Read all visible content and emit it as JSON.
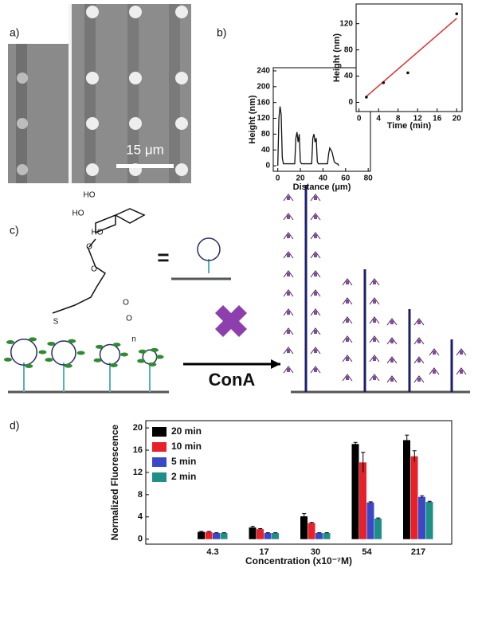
{
  "panel_labels": [
    "a)",
    "b)",
    "c)",
    "d)"
  ],
  "scale_bar": "15 μm",
  "diagram": {
    "reagent": "ConA",
    "equals": "=",
    "structure_labels": [
      "HO",
      "HO",
      "HO",
      "O",
      "O",
      "O",
      "O",
      "S",
      "n"
    ]
  },
  "chart_data": [
    {
      "type": "line",
      "xlabel": "Distance (μm)",
      "ylabel": "Height (nm)",
      "x": [
        0,
        1,
        2,
        3,
        4,
        5,
        8,
        12,
        15,
        16,
        17,
        18,
        19,
        20,
        21,
        22,
        25,
        28,
        30,
        31,
        32,
        33,
        34,
        35,
        36,
        38,
        42,
        44,
        45,
        46,
        47,
        48,
        50,
        52,
        53,
        54
      ],
      "series": [
        {
          "color": "#111111",
          "values": [
            0,
            120,
            150,
            130,
            20,
            5,
            5,
            5,
            5,
            70,
            85,
            60,
            80,
            10,
            5,
            5,
            5,
            5,
            5,
            70,
            80,
            60,
            70,
            10,
            5,
            5,
            5,
            5,
            30,
            45,
            40,
            35,
            10,
            5,
            5,
            0
          ]
        }
      ],
      "xlim": [
        -4,
        82
      ],
      "xticks": [
        0,
        20,
        40,
        60,
        80
      ],
      "ylim": [
        -14,
        248
      ],
      "yticks": [
        0,
        40,
        80,
        120,
        160,
        200,
        240
      ]
    },
    {
      "type": "scatter",
      "xlabel": "Time (min)",
      "ylabel": "Height (nm)",
      "x": [
        1.5,
        5,
        10,
        20
      ],
      "series": [
        {
          "color": "#111111",
          "values": [
            8,
            30,
            45,
            135
          ]
        }
      ],
      "fit": {
        "x": [
          1.5,
          20
        ],
        "y": [
          9,
          128
        ],
        "color": "#e03030"
      },
      "xlim": [
        -0.6,
        21.1
      ],
      "xticks": [
        0,
        4,
        8,
        12,
        16,
        20
      ],
      "ylim": [
        -14,
        150
      ],
      "yticks": [
        0,
        40,
        80,
        120
      ]
    },
    {
      "type": "bar",
      "xlabel": "Concentration (x10⁻⁷M)",
      "ylabel": "Normalized Fluorescence",
      "categories": [
        "4.3",
        "17",
        "30",
        "54",
        "217"
      ],
      "series": [
        {
          "name": "20 min",
          "color": "#000000",
          "values": [
            1.3,
            2.1,
            4.1,
            17.1,
            17.8
          ],
          "errors": [
            0.1,
            0.2,
            0.5,
            0.3,
            0.9
          ]
        },
        {
          "name": "10 min",
          "color": "#e8202a",
          "values": [
            1.3,
            1.8,
            2.9,
            13.8,
            14.9
          ],
          "errors": [
            0.1,
            0.1,
            0.1,
            1.8,
            1.0
          ]
        },
        {
          "name": "5 min",
          "color": "#3a48c8",
          "values": [
            1.1,
            1.1,
            1.1,
            6.6,
            7.6
          ],
          "errors": [
            0.05,
            0.05,
            0.05,
            0.1,
            0.2
          ]
        },
        {
          "name": "2 min",
          "color": "#1e8f86",
          "values": [
            1.1,
            1.1,
            1.1,
            3.7,
            6.7
          ],
          "errors": [
            0.05,
            0.05,
            0.05,
            0.1,
            0.1
          ]
        }
      ],
      "ylim": [
        -0.9,
        21.3
      ],
      "yticks": [
        0,
        4,
        8,
        12,
        16,
        20
      ],
      "legend": "upper left"
    }
  ]
}
